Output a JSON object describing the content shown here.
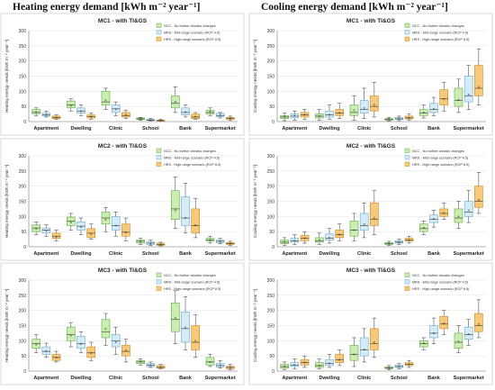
{
  "headings": {
    "heating": "Heating energy demand [kWh m⁻² year⁻¹]",
    "cooling": "Cooling energy demand [kWh m⁻² year⁻¹]"
  },
  "colors": {
    "NCC": "#c9eeb0",
    "NCC_edge": "#6aa84f",
    "MRS": "#d4ecf8",
    "MRS_edge": "#6fa8c8",
    "HRS": "#f7c97a",
    "HRS_edge": "#c98a1c"
  },
  "chart_data": [
    {
      "type": "box",
      "title": "MC1 - with TI&GS",
      "ylabel": "Heating energy needs [kWh m⁻² year⁻¹]",
      "ylim": [
        0,
        300
      ],
      "yticks": [
        0,
        50,
        100,
        150,
        200,
        250,
        300
      ],
      "categories": [
        "Apartment",
        "Dwelling",
        "Clinic",
        "School",
        "Bank",
        "Supermarket"
      ],
      "legend": [
        "NCC - No further climatic changes",
        "MRS - Mid-range scenario (RCP 4.5)",
        "HRS - High-range scenario (RCP 8.5)"
      ],
      "series": [
        {
          "name": "NCC",
          "min": [
            20,
            35,
            40,
            5,
            30,
            20
          ],
          "q1": [
            26,
            45,
            55,
            7,
            45,
            25
          ],
          "median": [
            30,
            55,
            65,
            9,
            60,
            30
          ],
          "mean": [
            32,
            52,
            70,
            9,
            65,
            33
          ],
          "q3": [
            40,
            68,
            100,
            12,
            85,
            38
          ],
          "max": [
            45,
            75,
            110,
            14,
            115,
            45
          ]
        },
        {
          "name": "MRS",
          "min": [
            15,
            20,
            20,
            3,
            15,
            12
          ],
          "q1": [
            18,
            28,
            30,
            4,
            22,
            17
          ],
          "median": [
            22,
            35,
            42,
            5,
            30,
            20
          ],
          "mean": [
            22,
            35,
            40,
            5,
            32,
            22
          ],
          "q3": [
            28,
            45,
            55,
            8,
            45,
            27
          ],
          "max": [
            35,
            55,
            65,
            10,
            55,
            30
          ]
        },
        {
          "name": "HRS",
          "min": [
            8,
            8,
            10,
            2,
            8,
            5
          ],
          "q1": [
            10,
            12,
            15,
            3,
            10,
            8
          ],
          "median": [
            13,
            16,
            20,
            3,
            15,
            10
          ],
          "mean": [
            14,
            17,
            22,
            4,
            16,
            11
          ],
          "q3": [
            18,
            22,
            30,
            5,
            25,
            14
          ],
          "max": [
            22,
            28,
            38,
            7,
            30,
            18
          ]
        }
      ]
    },
    {
      "type": "box",
      "title": "MC2 - with TI&GS",
      "ylabel": "Heating energy needs [kWh m⁻² year⁻¹]",
      "ylim": [
        0,
        300
      ],
      "yticks": [
        0,
        50,
        100,
        150,
        200,
        250,
        300
      ],
      "categories": [
        "Apartment",
        "Dwelling",
        "Clinic",
        "School",
        "Bank",
        "Supermarket"
      ],
      "legend": [
        "NCC - No further climatic changes",
        "MRS - Mid-range scenario (RCP 4.5)",
        "HRS - High-range scenario (RCP 8.5)"
      ],
      "series": [
        {
          "name": "NCC",
          "min": [
            40,
            55,
            50,
            8,
            60,
            12
          ],
          "q1": [
            50,
            70,
            75,
            12,
            90,
            18
          ],
          "median": [
            62,
            85,
            95,
            18,
            125,
            22
          ],
          "mean": [
            60,
            80,
            90,
            17,
            120,
            22
          ],
          "q3": [
            72,
            98,
            115,
            22,
            185,
            28
          ],
          "max": [
            82,
            110,
            130,
            28,
            230,
            35
          ]
        },
        {
          "name": "MRS",
          "min": [
            35,
            40,
            35,
            5,
            45,
            10
          ],
          "q1": [
            45,
            55,
            55,
            8,
            70,
            14
          ],
          "median": [
            55,
            68,
            70,
            12,
            95,
            18
          ],
          "mean": [
            52,
            65,
            70,
            11,
            95,
            18
          ],
          "q3": [
            62,
            82,
            100,
            16,
            165,
            22
          ],
          "max": [
            72,
            95,
            115,
            22,
            210,
            28
          ]
        },
        {
          "name": "HRS",
          "min": [
            20,
            25,
            20,
            3,
            30,
            5
          ],
          "q1": [
            28,
            30,
            35,
            5,
            45,
            8
          ],
          "median": [
            35,
            45,
            48,
            8,
            70,
            10
          ],
          "mean": [
            33,
            42,
            48,
            8,
            72,
            11
          ],
          "q3": [
            45,
            60,
            75,
            12,
            125,
            14
          ],
          "max": [
            55,
            75,
            95,
            15,
            160,
            18
          ]
        }
      ]
    },
    {
      "type": "box",
      "title": "MC3 - with TI&GS",
      "ylabel": "Heating energy needs [kWh m⁻² year⁻¹]",
      "ylim": [
        0,
        300
      ],
      "yticks": [
        0,
        50,
        100,
        150,
        200,
        250,
        300
      ],
      "categories": [
        "Apartment",
        "Dwelling",
        "Clinic",
        "School",
        "Bank",
        "Supermarket"
      ],
      "legend": [
        "NCC - No further climatic changes",
        "MRS - Mid-range scenario (RCP 4.5)",
        "HRS - High-range scenario (RCP 8.5)"
      ],
      "series": [
        {
          "name": "NCC",
          "min": [
            60,
            80,
            85,
            20,
            90,
            15
          ],
          "q1": [
            75,
            100,
            110,
            25,
            130,
            20
          ],
          "median": [
            90,
            120,
            130,
            30,
            170,
            30
          ],
          "mean": [
            88,
            118,
            140,
            32,
            175,
            30
          ],
          "q3": [
            105,
            145,
            170,
            35,
            225,
            45
          ],
          "max": [
            120,
            160,
            190,
            40,
            265,
            55
          ]
        },
        {
          "name": "MRS",
          "min": [
            45,
            60,
            55,
            12,
            70,
            10
          ],
          "q1": [
            55,
            75,
            80,
            15,
            95,
            14
          ],
          "median": [
            65,
            90,
            100,
            20,
            140,
            18
          ],
          "mean": [
            66,
            90,
            95,
            20,
            145,
            19
          ],
          "q3": [
            80,
            115,
            120,
            25,
            195,
            25
          ],
          "max": [
            92,
            130,
            145,
            30,
            245,
            35
          ]
        },
        {
          "name": "HRS",
          "min": [
            30,
            35,
            30,
            8,
            45,
            5
          ],
          "q1": [
            35,
            45,
            50,
            10,
            70,
            8
          ],
          "median": [
            45,
            60,
            65,
            12,
            95,
            12
          ],
          "mean": [
            45,
            60,
            68,
            13,
            100,
            12
          ],
          "q3": [
            55,
            80,
            85,
            18,
            150,
            16
          ],
          "max": [
            65,
            95,
            105,
            22,
            185,
            22
          ]
        }
      ]
    },
    {
      "type": "box",
      "title": "MC1 - with TI&GS",
      "ylabel": "Cooling energy needs [kWh m⁻² year⁻¹]",
      "ylim": [
        0,
        300
      ],
      "yticks": [
        0,
        50,
        100,
        150,
        200,
        250,
        300
      ],
      "categories": [
        "Apartment",
        "Dwelling",
        "Clinic",
        "School",
        "Bank",
        "Supermarket"
      ],
      "legend": [
        "NCC - No further climatic changes",
        "MRS - Mid-range scenario (RCP 4.5)",
        "HRS - High-range scenario (RCP 8.5)"
      ],
      "series": [
        {
          "name": "NCC",
          "min": [
            3,
            5,
            5,
            2,
            12,
            30
          ],
          "q1": [
            10,
            12,
            20,
            5,
            20,
            50
          ],
          "median": [
            15,
            18,
            30,
            7,
            28,
            70
          ],
          "mean": [
            16,
            18,
            38,
            8,
            30,
            72
          ],
          "q3": [
            20,
            25,
            55,
            10,
            40,
            110
          ],
          "max": [
            28,
            40,
            85,
            14,
            55,
            140
          ]
        },
        {
          "name": "MRS",
          "min": [
            5,
            8,
            10,
            3,
            20,
            40
          ],
          "q1": [
            12,
            15,
            28,
            7,
            30,
            65
          ],
          "median": [
            18,
            22,
            40,
            9,
            40,
            85
          ],
          "mean": [
            19,
            22,
            45,
            10,
            42,
            90
          ],
          "q3": [
            25,
            35,
            70,
            14,
            60,
            150
          ],
          "max": [
            35,
            55,
            110,
            18,
            80,
            185
          ]
        },
        {
          "name": "HRS",
          "min": [
            8,
            10,
            15,
            5,
            35,
            55
          ],
          "q1": [
            15,
            20,
            35,
            9,
            55,
            85
          ],
          "median": [
            22,
            28,
            50,
            12,
            75,
            110
          ],
          "mean": [
            22,
            28,
            55,
            12,
            75,
            115
          ],
          "q3": [
            30,
            40,
            85,
            18,
            105,
            185
          ],
          "max": [
            40,
            60,
            130,
            25,
            130,
            240
          ]
        }
      ]
    },
    {
      "type": "box",
      "title": "MC2 - with TI&GS",
      "ylabel": "Cooling energy needs [kWh m⁻² year⁻¹]",
      "ylim": [
        0,
        300
      ],
      "yticks": [
        0,
        50,
        100,
        150,
        200,
        250,
        300
      ],
      "categories": [
        "Apartment",
        "Dwelling",
        "Clinic",
        "School",
        "Bank",
        "Supermarket"
      ],
      "legend": [
        "NCC - No further climatic changes",
        "MRS - Mid-range scenario (RCP 4.5)",
        "HRS - High-range scenario (RCP 8.5)"
      ],
      "series": [
        {
          "name": "NCC",
          "min": [
            5,
            8,
            20,
            5,
            40,
            60
          ],
          "q1": [
            10,
            15,
            35,
            8,
            50,
            80
          ],
          "median": [
            15,
            20,
            55,
            10,
            60,
            95
          ],
          "mean": [
            16,
            22,
            55,
            10,
            62,
            100
          ],
          "q3": [
            22,
            30,
            85,
            14,
            75,
            125
          ],
          "max": [
            30,
            45,
            110,
            18,
            85,
            150
          ]
        },
        {
          "name": "MRS",
          "min": [
            8,
            12,
            30,
            8,
            65,
            80
          ],
          "q1": [
            15,
            22,
            55,
            12,
            80,
            100
          ],
          "median": [
            20,
            28,
            70,
            15,
            90,
            115
          ],
          "mean": [
            21,
            30,
            75,
            15,
            92,
            120
          ],
          "q3": [
            28,
            42,
            110,
            20,
            105,
            150
          ],
          "max": [
            40,
            60,
            145,
            25,
            120,
            185
          ]
        },
        {
          "name": "HRS",
          "min": [
            12,
            20,
            40,
            12,
            90,
            110
          ],
          "q1": [
            20,
            30,
            70,
            18,
            100,
            130
          ],
          "median": [
            28,
            40,
            90,
            22,
            110,
            150
          ],
          "mean": [
            28,
            40,
            95,
            22,
            112,
            155
          ],
          "q3": [
            38,
            55,
            145,
            28,
            125,
            200
          ],
          "max": [
            50,
            75,
            185,
            35,
            145,
            245
          ]
        }
      ]
    },
    {
      "type": "box",
      "title": "MC3 - with TI&GS",
      "ylabel": "Cooling energy needs [kWh m⁻² year⁻¹]",
      "ylim": [
        0,
        300
      ],
      "yticks": [
        0,
        50,
        100,
        150,
        200,
        250,
        300
      ],
      "categories": [
        "Apartment",
        "Dwelling",
        "Clinic",
        "School",
        "Bank",
        "Supermarket"
      ],
      "legend": [
        "NCC - No further climatic changes",
        "MRS - Mid-range scenario (RCP 4.5)",
        "HRS - High-range scenario (RCP 8.5)"
      ],
      "series": [
        {
          "name": "NCC",
          "min": [
            5,
            8,
            15,
            5,
            70,
            60
          ],
          "q1": [
            10,
            12,
            35,
            8,
            80,
            75
          ],
          "median": [
            15,
            18,
            55,
            10,
            90,
            95
          ],
          "mean": [
            15,
            18,
            55,
            10,
            92,
            98
          ],
          "q3": [
            22,
            28,
            85,
            14,
            100,
            125
          ],
          "max": [
            30,
            40,
            110,
            18,
            110,
            150
          ]
        },
        {
          "name": "MRS",
          "min": [
            8,
            12,
            30,
            8,
            90,
            85
          ],
          "q1": [
            15,
            18,
            50,
            12,
            110,
            105
          ],
          "median": [
            20,
            25,
            70,
            15,
            125,
            120
          ],
          "mean": [
            21,
            26,
            72,
            15,
            125,
            122
          ],
          "q3": [
            28,
            38,
            110,
            20,
            150,
            145
          ],
          "max": [
            40,
            55,
            140,
            25,
            175,
            170
          ]
        },
        {
          "name": "HRS",
          "min": [
            12,
            18,
            45,
            12,
            120,
            110
          ],
          "q1": [
            20,
            28,
            70,
            18,
            140,
            130
          ],
          "median": [
            28,
            38,
            90,
            22,
            155,
            150
          ],
          "mean": [
            28,
            38,
            95,
            22,
            158,
            155
          ],
          "q3": [
            38,
            55,
            140,
            28,
            180,
            190
          ],
          "max": [
            50,
            70,
            175,
            35,
            200,
            235
          ]
        }
      ]
    }
  ]
}
